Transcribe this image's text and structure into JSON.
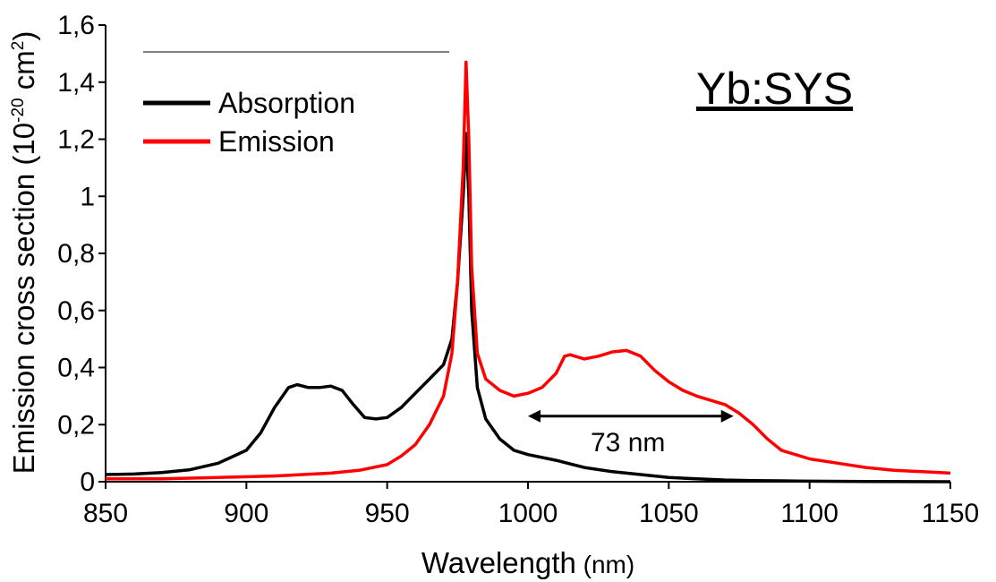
{
  "chart_data": {
    "type": "line",
    "title": "Yb:SYS",
    "xlabel": "Wavelength",
    "xlabel_unit": "(nm)",
    "ylabel": "Emission cross section",
    "ylabel_unit_base": "(10",
    "ylabel_unit_exp": "-20",
    "ylabel_unit_mid": " cm",
    "ylabel_unit_exp2": "2",
    "ylabel_unit_end": ")",
    "xlim": [
      850,
      1150
    ],
    "ylim": [
      0,
      1.6
    ],
    "x_ticks": [
      850,
      900,
      950,
      1000,
      1050,
      1100,
      1150
    ],
    "x_tick_labels": [
      "850",
      "900",
      "950",
      "1000",
      "1050",
      "1100",
      "1150"
    ],
    "y_ticks": [
      0,
      0.2,
      0.4,
      0.6,
      0.8,
      1.0,
      1.2,
      1.4,
      1.6
    ],
    "y_tick_labels": [
      "0",
      "0,2",
      "0,4",
      "0,6",
      "0,8",
      "1",
      "1,2",
      "1,4",
      "1,6"
    ],
    "grid": false,
    "legend_position": "top-left",
    "series": [
      {
        "name": "Absorption",
        "color": "#000000",
        "x": [
          850,
          860,
          870,
          880,
          890,
          900,
          905,
          910,
          915,
          918,
          922,
          926,
          930,
          934,
          938,
          942,
          946,
          950,
          955,
          960,
          965,
          970,
          973,
          975,
          977,
          978,
          979,
          980,
          982,
          985,
          990,
          995,
          1000,
          1010,
          1020,
          1030,
          1040,
          1050,
          1060,
          1070,
          1080,
          1090,
          1100,
          1120,
          1150
        ],
        "y": [
          0.025,
          0.027,
          0.032,
          0.042,
          0.065,
          0.11,
          0.17,
          0.26,
          0.33,
          0.34,
          0.33,
          0.33,
          0.335,
          0.32,
          0.27,
          0.225,
          0.22,
          0.225,
          0.26,
          0.31,
          0.36,
          0.41,
          0.5,
          0.7,
          1.0,
          1.22,
          1.0,
          0.6,
          0.33,
          0.22,
          0.15,
          0.11,
          0.095,
          0.075,
          0.05,
          0.035,
          0.025,
          0.015,
          0.01,
          0.006,
          0.004,
          0.003,
          0.002,
          0.001,
          0.0
        ]
      },
      {
        "name": "Emission",
        "color": "#ff0000",
        "x": [
          850,
          870,
          890,
          910,
          930,
          940,
          950,
          955,
          960,
          965,
          970,
          973,
          975,
          977,
          978,
          979,
          980,
          982,
          985,
          990,
          995,
          1000,
          1005,
          1010,
          1013,
          1015,
          1020,
          1025,
          1030,
          1035,
          1040,
          1045,
          1050,
          1055,
          1060,
          1065,
          1070,
          1075,
          1080,
          1085,
          1090,
          1100,
          1110,
          1120,
          1130,
          1140,
          1150
        ],
        "y": [
          0.01,
          0.01,
          0.015,
          0.02,
          0.03,
          0.04,
          0.06,
          0.09,
          0.13,
          0.2,
          0.3,
          0.45,
          0.7,
          1.1,
          1.47,
          1.2,
          0.75,
          0.45,
          0.36,
          0.32,
          0.3,
          0.31,
          0.33,
          0.38,
          0.44,
          0.445,
          0.43,
          0.44,
          0.455,
          0.46,
          0.44,
          0.39,
          0.35,
          0.32,
          0.3,
          0.285,
          0.27,
          0.24,
          0.2,
          0.15,
          0.11,
          0.08,
          0.065,
          0.05,
          0.04,
          0.035,
          0.03
        ]
      }
    ],
    "annotations": [
      {
        "text": "73 nm",
        "arrow_from_x": 1000,
        "arrow_to_x": 1073,
        "arrow_y": 0.23
      }
    ]
  }
}
